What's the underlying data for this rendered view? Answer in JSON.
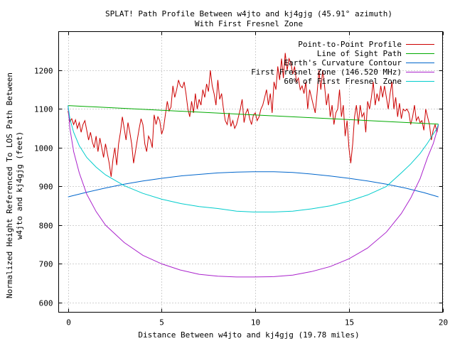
{
  "chart_data": {
    "type": "line",
    "title_line1": "SPLAT! Path Profile Between w4jto and kj4gjg (45.91° azimuth)",
    "title_line2": "With First Fresnel Zone",
    "xlabel": "Distance Between w4jto and kj4gjg (19.78 miles)",
    "ylabel_line1": "Normalized Height Referenced To LOS Path Between",
    "ylabel_line2": "w4jto and kj4gjg (feet)",
    "xlim": [
      -0.5,
      20
    ],
    "ylim": [
      575,
      1300
    ],
    "x_ticks": [
      0,
      5,
      10,
      15,
      20
    ],
    "y_ticks": [
      600,
      700,
      800,
      900,
      1000,
      1100,
      1200
    ],
    "grid": true,
    "legend_position": "top-right",
    "series": [
      {
        "name": "Point-to-Point Profile",
        "color": "#cc0000",
        "x": [
          0.0,
          0.1,
          0.2,
          0.3,
          0.4,
          0.5,
          0.6,
          0.7,
          0.8,
          0.9,
          1.0,
          1.1,
          1.2,
          1.3,
          1.4,
          1.5,
          1.6,
          1.7,
          1.8,
          1.9,
          2.0,
          2.1,
          2.2,
          2.3,
          2.4,
          2.5,
          2.6,
          2.7,
          2.8,
          2.9,
          3.0,
          3.1,
          3.2,
          3.3,
          3.4,
          3.5,
          3.6,
          3.7,
          3.8,
          3.9,
          4.0,
          4.1,
          4.2,
          4.3,
          4.4,
          4.5,
          4.6,
          4.7,
          4.8,
          4.9,
          5.0,
          5.1,
          5.2,
          5.3,
          5.4,
          5.5,
          5.6,
          5.7,
          5.8,
          5.9,
          6.0,
          6.1,
          6.2,
          6.3,
          6.4,
          6.5,
          6.6,
          6.7,
          6.8,
          6.9,
          7.0,
          7.1,
          7.2,
          7.3,
          7.4,
          7.5,
          7.6,
          7.7,
          7.8,
          7.9,
          8.0,
          8.1,
          8.2,
          8.3,
          8.4,
          8.5,
          8.6,
          8.7,
          8.8,
          8.9,
          9.0,
          9.1,
          9.2,
          9.3,
          9.4,
          9.5,
          9.6,
          9.7,
          9.8,
          9.9,
          10.0,
          10.1,
          10.2,
          10.3,
          10.4,
          10.5,
          10.6,
          10.7,
          10.8,
          10.9,
          11.0,
          11.1,
          11.2,
          11.3,
          11.4,
          11.5,
          11.6,
          11.7,
          11.8,
          11.9,
          12.0,
          12.1,
          12.2,
          12.3,
          12.4,
          12.5,
          12.6,
          12.7,
          12.8,
          12.9,
          13.0,
          13.1,
          13.2,
          13.3,
          13.4,
          13.5,
          13.6,
          13.7,
          13.8,
          13.9,
          14.0,
          14.1,
          14.2,
          14.3,
          14.4,
          14.5,
          14.6,
          14.7,
          14.8,
          14.9,
          15.0,
          15.1,
          15.2,
          15.3,
          15.4,
          15.5,
          15.6,
          15.7,
          15.8,
          15.9,
          16.0,
          16.1,
          16.2,
          16.3,
          16.4,
          16.5,
          16.6,
          16.7,
          16.8,
          16.9,
          17.0,
          17.1,
          17.2,
          17.3,
          17.4,
          17.5,
          17.6,
          17.7,
          17.8,
          17.9,
          18.0,
          18.1,
          18.2,
          18.3,
          18.4,
          18.5,
          18.6,
          18.7,
          18.8,
          18.9,
          19.0,
          19.1,
          19.2,
          19.3,
          19.4,
          19.5,
          19.6,
          19.7,
          19.78
        ],
        "y": [
          1095,
          1068,
          1075,
          1060,
          1072,
          1050,
          1065,
          1040,
          1060,
          1070,
          1045,
          1020,
          1040,
          1015,
          1000,
          1030,
          990,
          1025,
          1000,
          975,
          1010,
          985,
          960,
          925,
          970,
          1000,
          955,
          1010,
          1040,
          1080,
          1050,
          1020,
          1065,
          1040,
          1010,
          960,
          990,
          1020,
          1050,
          1075,
          1060,
          1010,
          990,
          1030,
          1020,
          1000,
          1085,
          1060,
          1080,
          1070,
          1035,
          1050,
          1085,
          1120,
          1095,
          1105,
          1160,
          1130,
          1150,
          1175,
          1160,
          1155,
          1170,
          1140,
          1100,
          1080,
          1120,
          1090,
          1140,
          1100,
          1125,
          1110,
          1150,
          1130,
          1165,
          1145,
          1200,
          1160,
          1140,
          1110,
          1175,
          1125,
          1140,
          1100,
          1070,
          1060,
          1090,
          1055,
          1070,
          1050,
          1060,
          1080,
          1100,
          1125,
          1065,
          1090,
          1100,
          1075,
          1060,
          1085,
          1090,
          1070,
          1080,
          1100,
          1110,
          1130,
          1150,
          1110,
          1140,
          1090,
          1170,
          1150,
          1210,
          1175,
          1230,
          1180,
          1245,
          1200,
          1230,
          1220,
          1190,
          1210,
          1170,
          1180,
          1150,
          1160,
          1140,
          1170,
          1100,
          1150,
          1130,
          1110,
          1090,
          1140,
          1200,
          1150,
          1200,
          1160,
          1110,
          1140,
          1080,
          1110,
          1060,
          1090,
          1100,
          1150,
          1080,
          1110,
          1030,
          1070,
          1000,
          960,
          1010,
          1080,
          1110,
          1060,
          1110,
          1080,
          1090,
          1040,
          1120,
          1100,
          1130,
          1170,
          1110,
          1140,
          1120,
          1160,
          1130,
          1160,
          1130,
          1100,
          1140,
          1170,
          1100,
          1130,
          1080,
          1115,
          1075,
          1100,
          1095,
          1100,
          1090,
          1060,
          1080,
          1110,
          1070,
          1080,
          1065,
          1070,
          1045,
          1100,
          1080,
          1060,
          1020,
          1045,
          1060,
          1040,
          1060
        ]
      },
      {
        "name": "Line of Sight Path",
        "color": "#00aa00",
        "x": [
          0,
          19.78
        ],
        "y": [
          1109,
          1061
        ]
      },
      {
        "name": "Earth's Curvature Contour",
        "color": "#0066cc",
        "x": [
          0,
          1,
          2,
          3,
          4,
          5,
          6,
          7,
          8,
          9,
          9.89,
          11,
          12,
          13,
          14,
          15,
          16,
          17,
          18,
          19,
          19.78
        ],
        "y": [
          873,
          885,
          896,
          906,
          914,
          921,
          927,
          931,
          935,
          937,
          938,
          938,
          936,
          932,
          927,
          921,
          914,
          906,
          896,
          884,
          873
        ]
      },
      {
        "name": "First Fresnel Zone (146.520 MHz)",
        "color": "#aa22cc",
        "x": [
          0,
          0.1,
          0.3,
          0.6,
          1,
          1.5,
          2,
          3,
          4,
          5,
          6,
          7,
          8,
          9,
          9.89,
          11,
          12,
          13,
          14,
          15,
          16,
          17,
          17.8,
          18.3,
          18.8,
          19.2,
          19.5,
          19.68,
          19.78
        ],
        "y": [
          1109,
          1050,
          990,
          935,
          880,
          835,
          800,
          755,
          722,
          700,
          684,
          673,
          668,
          666,
          666,
          667,
          671,
          680,
          693,
          713,
          741,
          782,
          830,
          870,
          920,
          975,
          1010,
          1040,
          1061
        ]
      },
      {
        "name": "60% of First Fresnel Zone",
        "color": "#00cccc",
        "x": [
          0,
          0.1,
          0.3,
          0.6,
          1,
          1.5,
          2,
          3,
          4,
          5,
          6,
          7,
          8,
          9,
          9.89,
          11,
          12,
          13,
          14,
          15,
          16,
          17,
          17.8,
          18.3,
          18.8,
          19.2,
          19.5,
          19.68,
          19.78
        ],
        "y": [
          1109,
          1075,
          1040,
          1005,
          975,
          950,
          930,
          902,
          882,
          867,
          856,
          848,
          843,
          836,
          834,
          834,
          836,
          842,
          850,
          862,
          878,
          900,
          935,
          958,
          985,
          1012,
          1035,
          1048,
          1061
        ]
      }
    ]
  }
}
